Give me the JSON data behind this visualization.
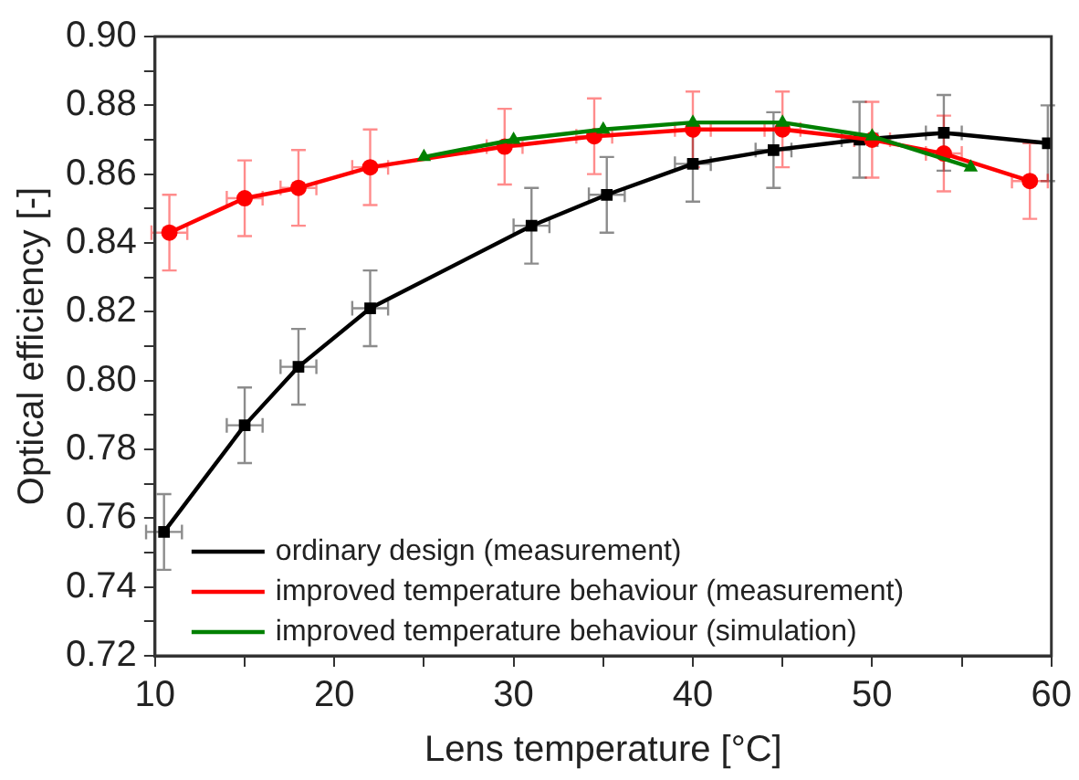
{
  "chart_data": {
    "type": "line",
    "xlabel": "Lens temperature [°C]",
    "ylabel": "Optical efficiency [-]",
    "xlim": [
      10,
      60
    ],
    "ylim": [
      0.72,
      0.9
    ],
    "xticks": [
      10,
      {
        "value": 15,
        "label": null
      },
      20,
      {
        "value": 25,
        "label": null
      },
      30,
      {
        "value": 35,
        "label": null
      },
      40,
      {
        "value": 45,
        "label": null
      },
      50,
      {
        "value": 55,
        "label": null
      },
      60
    ],
    "yticks": [
      {
        "value": 0.72,
        "label": "0.72"
      },
      {
        "value": 0.73,
        "label": null
      },
      {
        "value": 0.74,
        "label": "0.74"
      },
      {
        "value": 0.75,
        "label": null
      },
      {
        "value": 0.76,
        "label": "0.76"
      },
      {
        "value": 0.77,
        "label": null
      },
      {
        "value": 0.78,
        "label": "0.78"
      },
      {
        "value": 0.79,
        "label": null
      },
      {
        "value": 0.8,
        "label": "0.80"
      },
      {
        "value": 0.81,
        "label": null
      },
      {
        "value": 0.82,
        "label": "0.82"
      },
      {
        "value": 0.83,
        "label": null
      },
      {
        "value": 0.84,
        "label": "0.84"
      },
      {
        "value": 0.85,
        "label": null
      },
      {
        "value": 0.86,
        "label": "0.86"
      },
      {
        "value": 0.87,
        "label": null
      },
      {
        "value": 0.88,
        "label": "0.88"
      },
      {
        "value": 0.89,
        "label": null
      },
      {
        "value": 0.9,
        "label": "0.90"
      }
    ],
    "grid": false,
    "legend": "bottom left",
    "line_style": "solid",
    "series": [
      {
        "name": "ordinary design (measurement)",
        "color": "#000000",
        "marker": "square",
        "x": [
          10.5,
          15,
          18,
          22,
          31,
          35.2,
          40,
          44.5,
          49.3,
          54,
          59.8
        ],
        "values": [
          0.756,
          0.787,
          0.804,
          0.821,
          0.845,
          0.854,
          0.863,
          0.867,
          0.87,
          0.872,
          0.869
        ],
        "errors": [
          0.011,
          0.011,
          0.011,
          0.011,
          0.011,
          0.011,
          0.011,
          0.011,
          0.011,
          0.011,
          0.011
        ],
        "xerrors": [
          1,
          1,
          1,
          1,
          1,
          1,
          1,
          1,
          1,
          1,
          null
        ]
      },
      {
        "name": "improved temperature behaviour (measurement)",
        "color": "#ff0000",
        "marker": "circle",
        "x": [
          10.8,
          15,
          18,
          22,
          29.5,
          34.5,
          40,
          45,
          50,
          54,
          58.8
        ],
        "values": [
          0.843,
          0.853,
          0.856,
          0.862,
          0.868,
          0.871,
          0.873,
          0.873,
          0.87,
          0.866,
          0.858
        ],
        "errors": [
          0.011,
          0.011,
          0.011,
          0.011,
          0.011,
          0.011,
          0.011,
          0.011,
          0.011,
          0.011,
          0.011
        ],
        "xerrors": [
          1,
          1,
          1,
          1,
          1,
          1,
          1,
          1,
          1,
          1,
          1
        ]
      },
      {
        "name": "improved temperature behaviour (simulation)",
        "color": "#008000",
        "marker": "triangle",
        "x": [
          25,
          30,
          35,
          40,
          45,
          50,
          55.5
        ],
        "values": [
          0.865,
          0.87,
          0.873,
          0.875,
          0.875,
          0.871,
          0.862
        ]
      }
    ]
  }
}
